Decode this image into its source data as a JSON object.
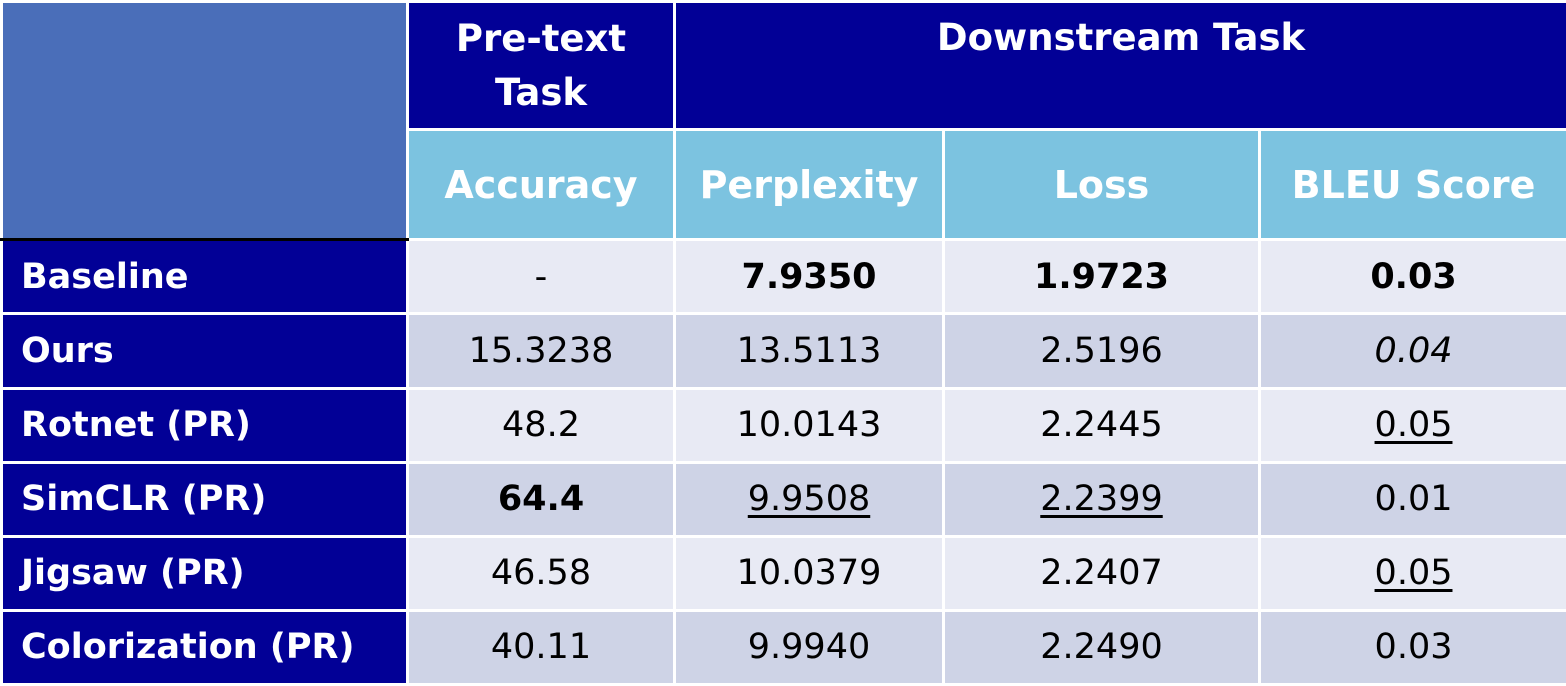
{
  "chart_data": {
    "type": "table",
    "header_groups": [
      {
        "label": "",
        "span": 1
      },
      {
        "label": "Pre-text Task",
        "span": 1
      },
      {
        "label": "Downstream Task",
        "span": 3
      }
    ],
    "columns": [
      "",
      "Accuracy",
      "Perplexity",
      "Loss",
      "BLEU Score"
    ],
    "rows": [
      {
        "label": "Baseline",
        "cells": [
          {
            "text": "-",
            "style": ""
          },
          {
            "text": "7.9350",
            "style": "bold"
          },
          {
            "text": "1.9723",
            "style": "bold"
          },
          {
            "text": "0.03",
            "style": "bold"
          }
        ]
      },
      {
        "label": "Ours",
        "cells": [
          {
            "text": "15.3238",
            "style": ""
          },
          {
            "text": "13.5113",
            "style": ""
          },
          {
            "text": "2.5196",
            "style": ""
          },
          {
            "text": "0.04",
            "style": "italic"
          }
        ]
      },
      {
        "label": "Rotnet (PR)",
        "cells": [
          {
            "text": "48.2",
            "style": ""
          },
          {
            "text": "10.0143",
            "style": ""
          },
          {
            "text": "2.2445",
            "style": ""
          },
          {
            "text": "0.05",
            "style": "underline"
          }
        ]
      },
      {
        "label": "SimCLR (PR)",
        "cells": [
          {
            "text": "64.4",
            "style": "bold"
          },
          {
            "text": "9.9508",
            "style": "underline"
          },
          {
            "text": "2.2399",
            "style": "underline"
          },
          {
            "text": "0.01",
            "style": ""
          }
        ]
      },
      {
        "label": "Jigsaw (PR)",
        "cells": [
          {
            "text": "46.58",
            "style": ""
          },
          {
            "text": "10.0379",
            "style": ""
          },
          {
            "text": "2.2407",
            "style": ""
          },
          {
            "text": "0.05",
            "style": "underline"
          }
        ]
      },
      {
        "label": "Colorization (PR)",
        "cells": [
          {
            "text": "40.11",
            "style": ""
          },
          {
            "text": "9.9940",
            "style": ""
          },
          {
            "text": "2.2490",
            "style": ""
          },
          {
            "text": "0.03",
            "style": ""
          }
        ]
      }
    ],
    "colors": {
      "corner": "#4a6eb9",
      "header_dark": "#020096",
      "header_light": "#7cc3e0",
      "row_light": "#e8eaf4",
      "row_dark": "#ced3e6"
    }
  }
}
